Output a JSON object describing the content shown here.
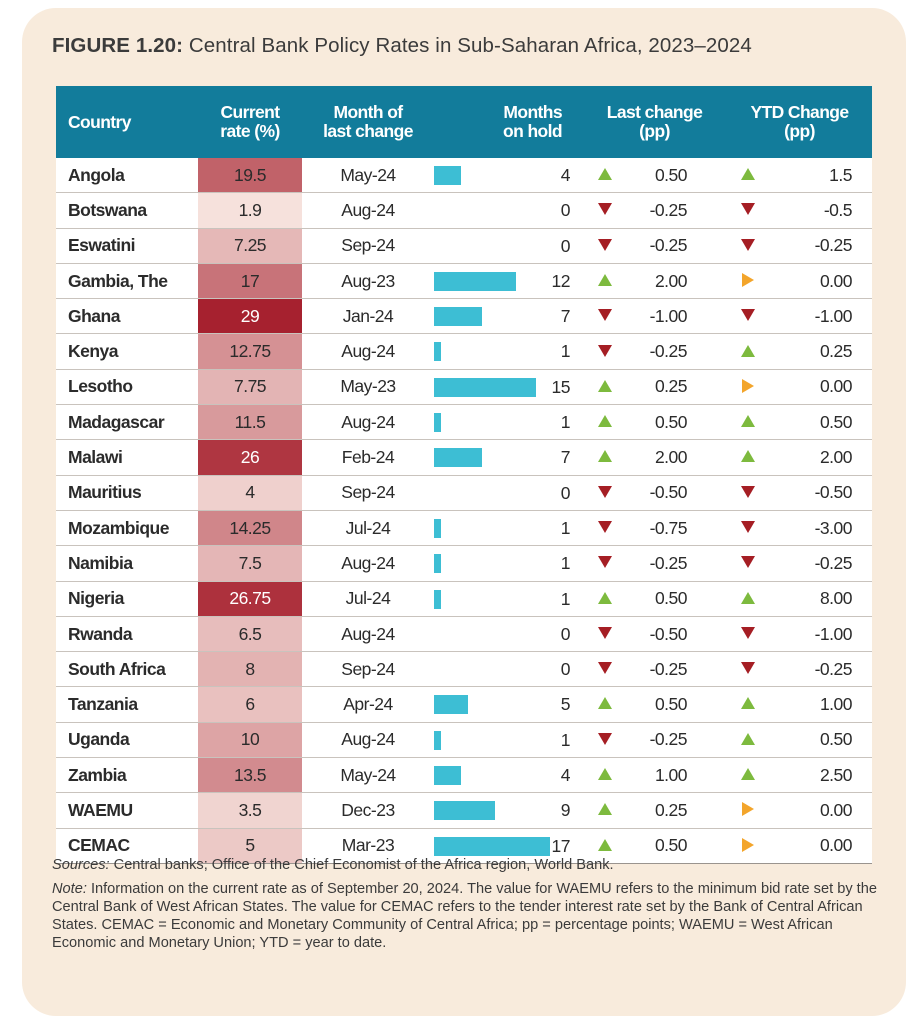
{
  "figure": {
    "label": "FIGURE 1.20:",
    "title": "Central Bank Policy Rates in Sub-Saharan Africa, 2023–2024"
  },
  "table": {
    "headers": {
      "country": "Country",
      "rate_line1": "Current",
      "rate_line2": "rate (%)",
      "month_line1": "Month of",
      "month_line2": "last change",
      "hold_line1": "Months",
      "hold_line2": "on hold",
      "last_line1": "Last change",
      "last_line2": "(pp)",
      "ytd_line1": "YTD Change",
      "ytd_line2": "(pp)"
    },
    "colors": {
      "header_bg": "#127c9b",
      "bar": "#3dbed4",
      "up_arrow": "#7dba3e",
      "down_arrow": "#a51e24",
      "flat_arrow": "#f3a52b",
      "rate_scale_low": "#f7e4df",
      "rate_scale_high": "#a51e2c"
    },
    "hold_max": 17,
    "rows": [
      {
        "country": "Angola",
        "rate": "19.5",
        "rate_val": 19.5,
        "month": "May-24",
        "hold": 4,
        "last_dir": "up",
        "last": "0.50",
        "ytd_dir": "up",
        "ytd": "1.5"
      },
      {
        "country": "Botswana",
        "rate": "1.9",
        "rate_val": 1.9,
        "month": "Aug-24",
        "hold": 0,
        "last_dir": "down",
        "last": "-0.25",
        "ytd_dir": "down",
        "ytd": "-0.5"
      },
      {
        "country": "Eswatini",
        "rate": "7.25",
        "rate_val": 7.25,
        "month": "Sep-24",
        "hold": 0,
        "last_dir": "down",
        "last": "-0.25",
        "ytd_dir": "down",
        "ytd": "-0.25"
      },
      {
        "country": "Gambia, The",
        "rate": "17",
        "rate_val": 17,
        "month": "Aug-23",
        "hold": 12,
        "last_dir": "up",
        "last": "2.00",
        "ytd_dir": "flat",
        "ytd": "0.00"
      },
      {
        "country": "Ghana",
        "rate": "29",
        "rate_val": 29,
        "month": "Jan-24",
        "hold": 7,
        "last_dir": "down",
        "last": "-1.00",
        "ytd_dir": "down",
        "ytd": "-1.00"
      },
      {
        "country": "Kenya",
        "rate": "12.75",
        "rate_val": 12.75,
        "month": "Aug-24",
        "hold": 1,
        "last_dir": "down",
        "last": "-0.25",
        "ytd_dir": "up",
        "ytd": "0.25"
      },
      {
        "country": "Lesotho",
        "rate": "7.75",
        "rate_val": 7.75,
        "month": "May-23",
        "hold": 15,
        "last_dir": "up",
        "last": "0.25",
        "ytd_dir": "flat",
        "ytd": "0.00"
      },
      {
        "country": "Madagascar",
        "rate": "11.5",
        "rate_val": 11.5,
        "month": "Aug-24",
        "hold": 1,
        "last_dir": "up",
        "last": "0.50",
        "ytd_dir": "up",
        "ytd": "0.50"
      },
      {
        "country": "Malawi",
        "rate": "26",
        "rate_val": 26,
        "month": "Feb-24",
        "hold": 7,
        "last_dir": "up",
        "last": "2.00",
        "ytd_dir": "up",
        "ytd": "2.00"
      },
      {
        "country": "Mauritius",
        "rate": "4",
        "rate_val": 4,
        "month": "Sep-24",
        "hold": 0,
        "last_dir": "down",
        "last": "-0.50",
        "ytd_dir": "down",
        "ytd": "-0.50"
      },
      {
        "country": "Mozambique",
        "rate": "14.25",
        "rate_val": 14.25,
        "month": "Jul-24",
        "hold": 1,
        "last_dir": "down",
        "last": "-0.75",
        "ytd_dir": "down",
        "ytd": "-3.00"
      },
      {
        "country": "Namibia",
        "rate": "7.5",
        "rate_val": 7.5,
        "month": "Aug-24",
        "hold": 1,
        "last_dir": "down",
        "last": "-0.25",
        "ytd_dir": "down",
        "ytd": "-0.25"
      },
      {
        "country": "Nigeria",
        "rate": "26.75",
        "rate_val": 26.75,
        "month": "Jul-24",
        "hold": 1,
        "last_dir": "up",
        "last": "0.50",
        "ytd_dir": "up",
        "ytd": "8.00"
      },
      {
        "country": "Rwanda",
        "rate": "6.5",
        "rate_val": 6.5,
        "month": "Aug-24",
        "hold": 0,
        "last_dir": "down",
        "last": "-0.50",
        "ytd_dir": "down",
        "ytd": "-1.00"
      },
      {
        "country": "South Africa",
        "rate": "8",
        "rate_val": 8,
        "month": "Sep-24",
        "hold": 0,
        "last_dir": "down",
        "last": "-0.25",
        "ytd_dir": "down",
        "ytd": "-0.25"
      },
      {
        "country": "Tanzania",
        "rate": "6",
        "rate_val": 6,
        "month": "Apr-24",
        "hold": 5,
        "last_dir": "up",
        "last": "0.50",
        "ytd_dir": "up",
        "ytd": "1.00"
      },
      {
        "country": "Uganda",
        "rate": "10",
        "rate_val": 10,
        "month": "Aug-24",
        "hold": 1,
        "last_dir": "down",
        "last": "-0.25",
        "ytd_dir": "up",
        "ytd": "0.50"
      },
      {
        "country": "Zambia",
        "rate": "13.5",
        "rate_val": 13.5,
        "month": "May-24",
        "hold": 4,
        "last_dir": "up",
        "last": "1.00",
        "ytd_dir": "up",
        "ytd": "2.50"
      },
      {
        "country": "WAEMU",
        "rate": "3.5",
        "rate_val": 3.5,
        "month": "Dec-23",
        "hold": 9,
        "last_dir": "up",
        "last": "0.25",
        "ytd_dir": "flat",
        "ytd": "0.00"
      },
      {
        "country": "CEMAC",
        "rate": "5",
        "rate_val": 5,
        "month": "Mar-23",
        "hold": 17,
        "last_dir": "up",
        "last": "0.50",
        "ytd_dir": "flat",
        "ytd": "0.00"
      }
    ]
  },
  "footer": {
    "sources_label": "Sources:",
    "sources_text": " Central banks; Office of the Chief Economist of the Africa region, World Bank.",
    "note_label": "Note:",
    "note_text": " Information on the current rate as of September 20, 2024. The value for WAEMU refers to the minimum bid rate set by the Central Bank of West African States. The value for CEMAC refers to the tender interest rate set by the Bank of Central African States. CEMAC = Economic and Monetary Community of Central Africa; pp = percentage points; WAEMU = West African Economic and Monetary Union; YTD = year to date."
  }
}
